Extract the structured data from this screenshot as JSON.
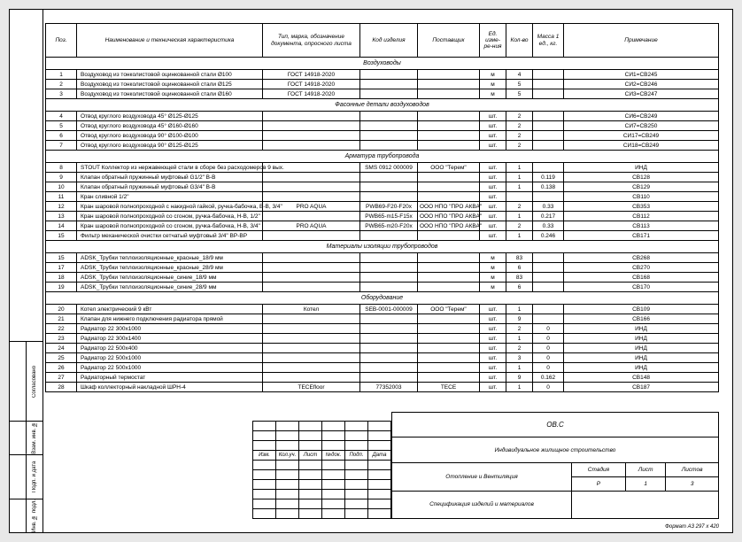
{
  "headers": {
    "pos": "Поз.",
    "name": "Наименование и техническая характеристика",
    "type": "Тип, марка, обозначение документа, опросного листа",
    "code": "Код изделия",
    "supplier": "Поставщик",
    "unit": "Ед. изме-ре-ния",
    "qty": "Кол-во",
    "mass": "Масса 1 ед., кг.",
    "note": "Примечание"
  },
  "sections": [
    {
      "title": "Воздуховоды",
      "rows": [
        {
          "pos": "1",
          "name": "Воздуховод из тонколистовой оцинкованной стали Ø100",
          "type": "ГОСТ 14918-2020",
          "code": "",
          "supplier": "",
          "unit": "м",
          "qty": "4",
          "mass": "",
          "note": "СИ1=СВ245"
        },
        {
          "pos": "2",
          "name": "Воздуховод из тонколистовой оцинкованной стали Ø125",
          "type": "ГОСТ 14918-2020",
          "code": "",
          "supplier": "",
          "unit": "м",
          "qty": "5",
          "mass": "",
          "note": "СИ2=СВ246"
        },
        {
          "pos": "3",
          "name": "Воздуховод из тонколистовой оцинкованной стали Ø160",
          "type": "ГОСТ 14918-2020",
          "code": "",
          "supplier": "",
          "unit": "м",
          "qty": "5",
          "mass": "",
          "note": "СИ3=СВ247"
        }
      ]
    },
    {
      "title": "Фасонные детали воздуховодов",
      "rows": [
        {
          "pos": "4",
          "name": "Отвод круглого воздуховода 45° Ø125-Ø125",
          "type": "",
          "code": "",
          "supplier": "",
          "unit": "шт.",
          "qty": "2",
          "mass": "",
          "note": "СИ6=СВ249"
        },
        {
          "pos": "5",
          "name": "Отвод круглого воздуховода 45° Ø160-Ø160",
          "type": "",
          "code": "",
          "supplier": "",
          "unit": "шт.",
          "qty": "2",
          "mass": "",
          "note": "СИ7=СВ250"
        },
        {
          "pos": "6",
          "name": "Отвод круглого воздуховода 90° Ø100-Ø100",
          "type": "",
          "code": "",
          "supplier": "",
          "unit": "шт.",
          "qty": "2",
          "mass": "",
          "note": "СИ17=СВ249"
        },
        {
          "pos": "7",
          "name": "Отвод круглого воздуховода 90° Ø125-Ø125",
          "type": "",
          "code": "",
          "supplier": "",
          "unit": "шт.",
          "qty": "2",
          "mass": "",
          "note": "СИ18=СВ249"
        }
      ]
    },
    {
      "title": "Арматура трубопровода",
      "rows": [
        {
          "pos": "8",
          "name": "STOUT Коллектор из нержавеющей стали в сборе без расходомеров 9 вых.",
          "type": "",
          "code": "SMS 0912 000009",
          "supplier": "ООО \"Терем\"",
          "unit": "шт.",
          "qty": "1",
          "mass": "",
          "note": "ИНД"
        },
        {
          "pos": "9",
          "name": "Клапан обратный пружинный муфтовый G1/2\" В-В",
          "type": "",
          "code": "",
          "supplier": "",
          "unit": "шт.",
          "qty": "1",
          "mass": "0.119",
          "note": "СВ128"
        },
        {
          "pos": "10",
          "name": "Клапан обратный пружинный муфтовый G3/4\" В-В",
          "type": "",
          "code": "",
          "supplier": "",
          "unit": "шт.",
          "qty": "1",
          "mass": "0.138",
          "note": "СВ129"
        },
        {
          "pos": "11",
          "name": "Кран сливной 1/2\"",
          "type": "",
          "code": "",
          "supplier": "",
          "unit": "шт.",
          "qty": "",
          "mass": "",
          "note": "СВ110"
        },
        {
          "pos": "12",
          "name": "Кран шаровой полнопроходной с накидной гайкой, ручка-бабочка, В-В, 3/4\"",
          "type": "PRO AQUA",
          "code": "PWB69-F20-F20x",
          "supplier": "ООО НПО \"ПРО АКВА\"",
          "unit": "шт.",
          "qty": "2",
          "mass": "0.33",
          "note": "СВ353"
        },
        {
          "pos": "13",
          "name": "Кран шаровой полнопроходной со сгоном, ручка-бабочка, Н-В, 1/2\"",
          "type": "",
          "code": "PWB65-m15-F15x",
          "supplier": "ООО НПО \"ПРО АКВА\"",
          "unit": "шт.",
          "qty": "1",
          "mass": "0.217",
          "note": "СВ112"
        },
        {
          "pos": "14",
          "name": "Кран шаровой полнопроходной со сгоном, ручка-бабочка, Н-В, 3/4\"",
          "type": "PRO AQUA",
          "code": "PWB65-m20-F20x",
          "supplier": "ООО НПО \"ПРО АКВА\"",
          "unit": "шт.",
          "qty": "2",
          "mass": "0.33",
          "note": "СВ113"
        },
        {
          "pos": "15",
          "name": "Фильтр механической очистки сетчатый муфтовый 3/4\" ВР-ВР",
          "type": "",
          "code": "",
          "supplier": "",
          "unit": "шт.",
          "qty": "1",
          "mass": "0.246",
          "note": "СВ171"
        }
      ]
    },
    {
      "title": "Материалы изоляции трубопроводов",
      "rows": [
        {
          "pos": "15",
          "name": "ADSK_Трубки теплоизоляционные_красные_18/9 мм",
          "type": "",
          "code": "",
          "supplier": "",
          "unit": "м",
          "qty": "83",
          "mass": "",
          "note": "СВ268"
        },
        {
          "pos": "17",
          "name": "ADSK_Трубки теплоизоляционные_красные_28/9 мм",
          "type": "",
          "code": "",
          "supplier": "",
          "unit": "м",
          "qty": "6",
          "mass": "",
          "note": "СВ270"
        },
        {
          "pos": "18",
          "name": "ADSK_Трубки теплоизоляционные_синие_18/9 мм",
          "type": "",
          "code": "",
          "supplier": "",
          "unit": "м",
          "qty": "83",
          "mass": "",
          "note": "СВ168"
        },
        {
          "pos": "19",
          "name": "ADSK_Трубки теплоизоляционные_синие_28/9 мм",
          "type": "",
          "code": "",
          "supplier": "",
          "unit": "м",
          "qty": "6",
          "mass": "",
          "note": "СВ170"
        }
      ]
    },
    {
      "title": "Оборудование",
      "rows": [
        {
          "pos": "20",
          "name": "Котел электрический 9 кВт",
          "type": "Котел",
          "code": "SEB-0001-000009",
          "supplier": "ООО \"Терем\"",
          "unit": "шт.",
          "qty": "1",
          "mass": "",
          "note": "СВ109"
        },
        {
          "pos": "21",
          "name": "Клапан для нижнего подключения радиатора прямой",
          "type": "",
          "code": "",
          "supplier": "",
          "unit": "шт.",
          "qty": "9",
          "mass": "",
          "note": "СВ166"
        },
        {
          "pos": "22",
          "name": "Радиатор 22 300x1000",
          "type": "",
          "code": "",
          "supplier": "",
          "unit": "шт.",
          "qty": "2",
          "mass": "0",
          "note": "ИНД"
        },
        {
          "pos": "23",
          "name": "Радиатор 22 300x1400",
          "type": "",
          "code": "",
          "supplier": "",
          "unit": "шт.",
          "qty": "1",
          "mass": "0",
          "note": "ИНД"
        },
        {
          "pos": "24",
          "name": "Радиатор 22 500x400",
          "type": "",
          "code": "",
          "supplier": "",
          "unit": "шт.",
          "qty": "2",
          "mass": "0",
          "note": "ИНД"
        },
        {
          "pos": "25",
          "name": "Радиатор 22 500x1000",
          "type": "",
          "code": "",
          "supplier": "",
          "unit": "шт.",
          "qty": "3",
          "mass": "0",
          "note": "ИНД"
        },
        {
          "pos": "26",
          "name": "Радиатор 22 500x1000",
          "type": "",
          "code": "",
          "supplier": "",
          "unit": "шт.",
          "qty": "1",
          "mass": "0",
          "note": "ИНД"
        },
        {
          "pos": "27",
          "name": "Радиаторный термостат",
          "type": "",
          "code": "",
          "supplier": "",
          "unit": "шт.",
          "qty": "9",
          "mass": "0.162",
          "note": "СВ148"
        },
        {
          "pos": "28",
          "name": "Шкаф коллекторный накладной ШРН-4",
          "type": "TECEfloor",
          "code": "77352003",
          "supplier": "TECE",
          "unit": "шт.",
          "qty": "1",
          "mass": "0",
          "note": "СВ187"
        }
      ]
    }
  ],
  "rev_headers": [
    "Изм.",
    "Кол.уч.",
    "Лист",
    "№док.",
    "Подп.",
    "Дата"
  ],
  "stamp": {
    "code": "ОВ.С",
    "project": "Индивидуальное жилищное строительство",
    "section": "Отопление и Вентиляция",
    "title": "Спецификация изделий и материалов",
    "stage_label": "Стадия",
    "sheet_label": "Лист",
    "sheets_label": "Листов",
    "stage": "Р",
    "sheet": "1",
    "sheets": "3"
  },
  "side": {
    "agreed": "Согласовано",
    "inv1": "Взам. инв. №",
    "sign": "Подп. и дата",
    "inv2": "Инв. № подл."
  },
  "format": "Формат А3    297 x 420"
}
